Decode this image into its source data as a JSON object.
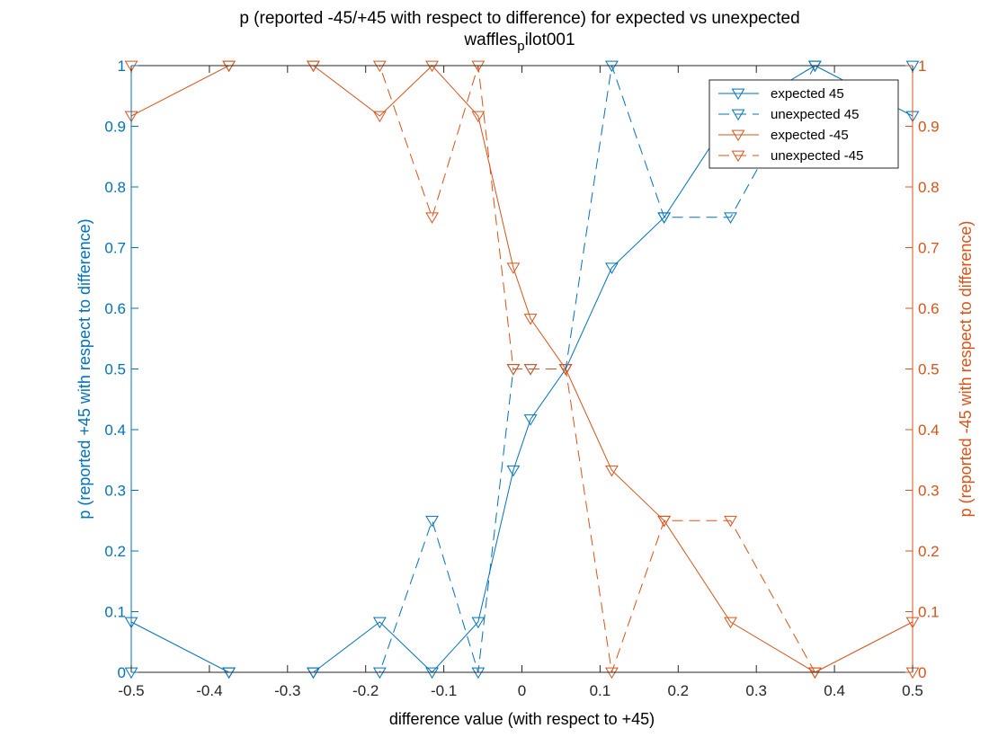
{
  "chart_data": {
    "type": "line",
    "title_line1": "p  (reported -45/+45 with respect to difference) for expected vs unexpected",
    "title_line2_main": "waffles",
    "title_line2_sub": "p",
    "title_line2_rest": "ilot001",
    "xlabel": "difference value (with respect to +45)",
    "ylabel_left": "p (reported +45 with respect to difference)",
    "ylabel_right": "p (reported -45 with respect to difference)",
    "xlim": [
      -0.5,
      0.5
    ],
    "ylim": [
      0,
      1
    ],
    "x_ticks": [
      -0.5,
      -0.4,
      -0.3,
      -0.2,
      -0.1,
      0,
      0.1,
      0.2,
      0.3,
      0.4,
      0.5
    ],
    "x_tick_labels": [
      "-0.5",
      "-0.4",
      "-0.3",
      "-0.2",
      "-0.1",
      "0",
      "0.1",
      "0.2",
      "0.3",
      "0.4",
      "0.5"
    ],
    "y_ticks": [
      0,
      0.1,
      0.2,
      0.3,
      0.4,
      0.5,
      0.6,
      0.7,
      0.8,
      0.9,
      1
    ],
    "y_tick_labels": [
      "0",
      "0.1",
      "0.2",
      "0.3",
      "0.4",
      "0.5",
      "0.6",
      "0.7",
      "0.8",
      "0.9",
      "1"
    ],
    "grid": false,
    "legend_position": "top-right",
    "colors": {
      "left_axis": "#0072BD",
      "right_axis": "#D95319",
      "axis_box": "#262626"
    },
    "marker": "triangle-down",
    "series": [
      {
        "name": "expected 45",
        "color": "#0072BD",
        "line_style": "solid",
        "axis": "left",
        "x": [
          -0.5,
          -0.375,
          -0.267,
          -0.182,
          -0.115,
          -0.056,
          -0.011,
          0.011,
          0.056,
          0.115,
          0.182,
          0.267,
          0.375,
          0.5
        ],
        "y": [
          0.083,
          0,
          0,
          0.083,
          0,
          0.083,
          0.333,
          0.417,
          0.5,
          0.667,
          0.75,
          0.917,
          1,
          0.917
        ]
      },
      {
        "name": "unexpected 45",
        "color": "#0072BD",
        "line_style": "dashed",
        "axis": "left",
        "x": [
          -0.5,
          -0.375,
          -0.267,
          -0.182,
          -0.115,
          -0.056,
          -0.011,
          0.011,
          0.056,
          0.115,
          0.182,
          0.267,
          0.375,
          0.5
        ],
        "y": [
          0,
          0,
          0,
          0,
          0.25,
          0,
          0.5,
          0.5,
          0.5,
          1,
          0.75,
          0.75,
          1,
          1
        ]
      },
      {
        "name": "expected -45",
        "color": "#D95319",
        "line_style": "solid",
        "axis": "right",
        "x": [
          -0.5,
          -0.375,
          -0.267,
          -0.182,
          -0.115,
          -0.056,
          -0.011,
          0.011,
          0.056,
          0.115,
          0.182,
          0.267,
          0.375,
          0.5
        ],
        "y": [
          0.917,
          1,
          1,
          0.917,
          1,
          0.917,
          0.667,
          0.583,
          0.5,
          0.333,
          0.25,
          0.083,
          0,
          0.083
        ]
      },
      {
        "name": "unexpected -45",
        "color": "#D95319",
        "line_style": "dashed",
        "axis": "right",
        "x": [
          -0.5,
          -0.375,
          -0.267,
          -0.182,
          -0.115,
          -0.056,
          -0.011,
          0.011,
          0.056,
          0.115,
          0.182,
          0.267,
          0.375,
          0.5
        ],
        "y": [
          1,
          1,
          1,
          1,
          0.75,
          1,
          0.5,
          0.5,
          0.5,
          0,
          0.25,
          0.25,
          0,
          0
        ]
      }
    ]
  }
}
